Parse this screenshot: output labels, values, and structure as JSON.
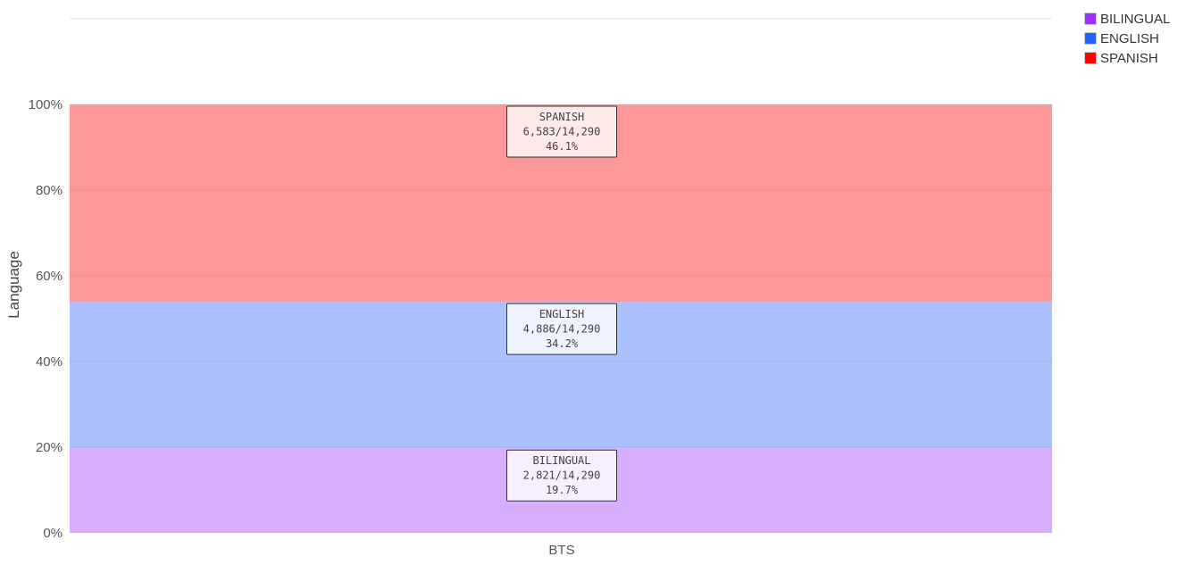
{
  "chart_data": {
    "type": "bar",
    "stacked": true,
    "orientation": "vertical",
    "percent_stacked": true,
    "categories": [
      "BTS"
    ],
    "ylabel": "Language",
    "xlabel": "",
    "ylim": [
      0,
      100
    ],
    "y_ticks": [
      "0%",
      "20%",
      "40%",
      "60%",
      "80%",
      "100%"
    ],
    "grid": true,
    "legend_position": "top-right",
    "series": [
      {
        "name": "BILINGUAL",
        "count": 2821,
        "total": 14290,
        "percent": 19.7,
        "label_lines": [
          "BILINGUAL",
          "2,821/14,290",
          "19.7%"
        ],
        "color": "#9b30ff",
        "fill": "#d7adfe"
      },
      {
        "name": "ENGLISH",
        "count": 4886,
        "total": 14290,
        "percent": 34.2,
        "label_lines": [
          "ENGLISH",
          "4,886/14,290",
          "34.2%"
        ],
        "color": "#2563ff",
        "fill": "#adc0fe"
      },
      {
        "name": "SPANISH",
        "count": 6583,
        "total": 14290,
        "percent": 46.1,
        "label_lines": [
          "SPANISH",
          "6,583/14,290",
          "46.1%"
        ],
        "color": "#ff0000",
        "fill": "#fe9797"
      }
    ]
  },
  "legend": {
    "items": [
      {
        "label": "BILINGUAL",
        "color": "#9b30ff"
      },
      {
        "label": "ENGLISH",
        "color": "#2563ff"
      },
      {
        "label": "SPANISH",
        "color": "#ff0000"
      }
    ]
  }
}
